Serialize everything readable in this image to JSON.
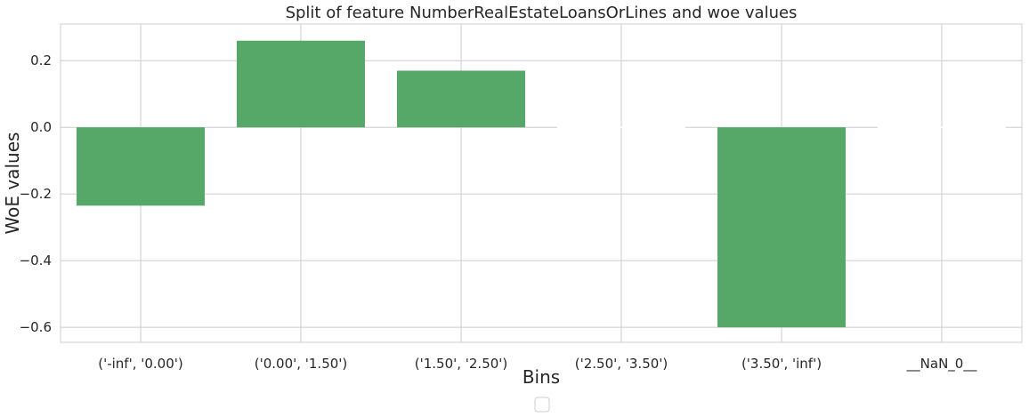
{
  "chart_data": {
    "type": "bar",
    "title": "Split of feature NumberRealEstateLoansOrLines and woe values",
    "xlabel": "Bins",
    "ylabel": "WoE values",
    "categories": [
      "('-inf', '0.00')",
      "('0.00', '1.50')",
      "('1.50', '2.50')",
      "('2.50', '3.50')",
      "('3.50', 'inf')",
      "__NaN_0__"
    ],
    "values": [
      -0.235,
      0.26,
      0.17,
      0.0,
      -0.6,
      0.0
    ],
    "ylim": [
      -0.645,
      0.31
    ],
    "yticks": [
      -0.6,
      -0.4,
      -0.2,
      0.0,
      0.2
    ],
    "ytick_labels": [
      "−0.6",
      "−0.4",
      "−0.2",
      "0.0",
      "0.2"
    ],
    "grid": true,
    "legend": "bottom-center (empty)",
    "bar_color": "#55a868",
    "grid_color": "#cccccc"
  }
}
